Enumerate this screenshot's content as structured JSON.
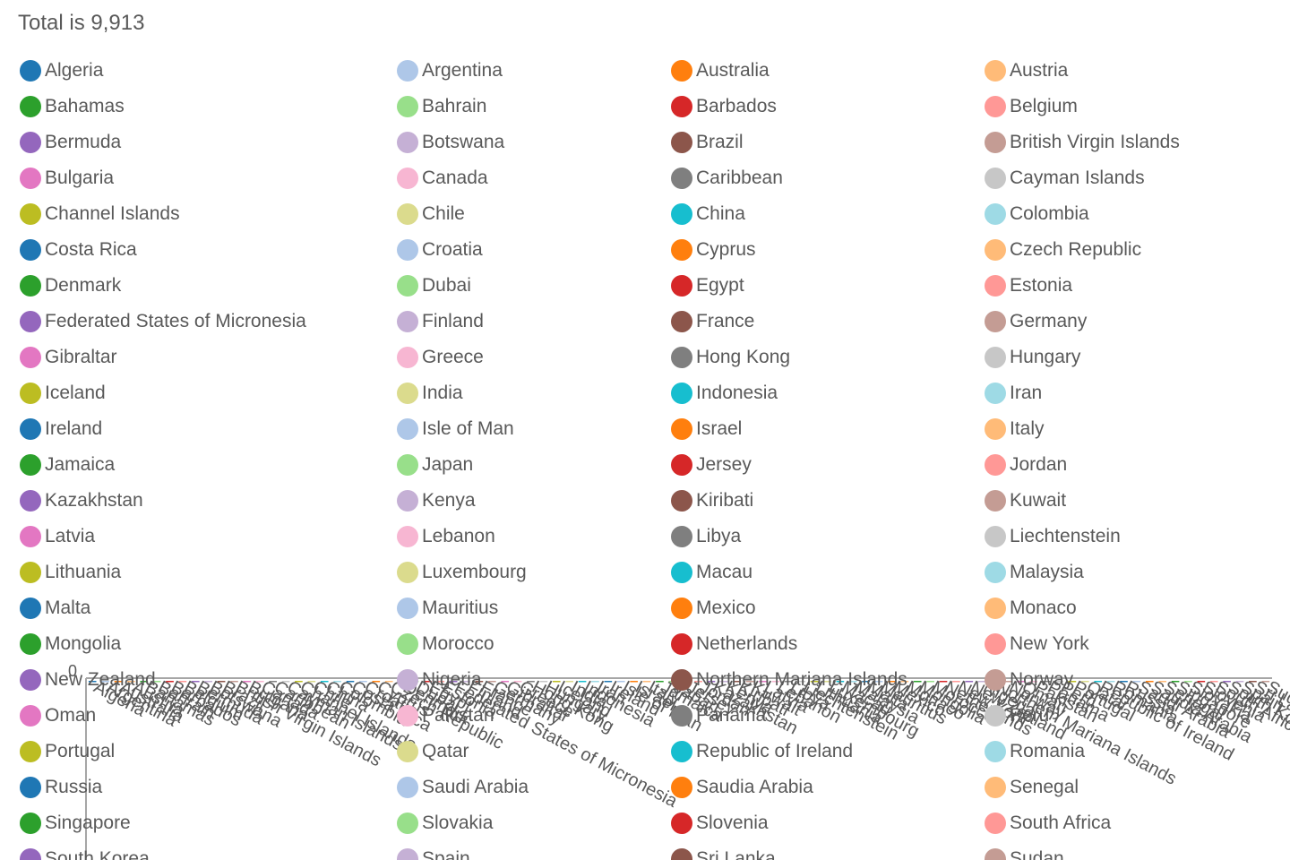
{
  "chart_data": {
    "type": "bar",
    "title": "Total is 9,913",
    "y_tick_labels": [
      "0"
    ],
    "legend": {
      "placement": "top",
      "columns": 4
    },
    "palette": [
      "#1f77b4",
      "#aec7e8",
      "#ff7f0e",
      "#ffbb78",
      "#2ca02c",
      "#98df8a",
      "#d62728",
      "#ff9896",
      "#9467bd",
      "#c5b0d5",
      "#8c564b",
      "#c49c94",
      "#e377c2",
      "#f7b6d2",
      "#7f7f7f",
      "#c7c7c7",
      "#bcbd22",
      "#dbdb8d",
      "#17becf",
      "#9edae5"
    ],
    "categories": [
      "Algeria",
      "Argentina",
      "Australia",
      "Austria",
      "Bahamas",
      "Bahrain",
      "Barbados",
      "Belgium",
      "Bermuda",
      "Botswana",
      "Brazil",
      "British Virgin Islands",
      "Bulgaria",
      "Canada",
      "Caribbean",
      "Cayman Islands",
      "Channel Islands",
      "Chile",
      "China",
      "Colombia",
      "Costa Rica",
      "Croatia",
      "Cyprus",
      "Czech Republic",
      "Denmark",
      "Dubai",
      "Egypt",
      "Estonia",
      "Federated States of Micronesia",
      "Finland",
      "France",
      "Germany",
      "Gibraltar",
      "Greece",
      "Hong Kong",
      "Hungary",
      "Iceland",
      "India",
      "Indonesia",
      "Iran",
      "Ireland",
      "Isle of Man",
      "Israel",
      "Italy",
      "Jamaica",
      "Japan",
      "Jersey",
      "Jordan",
      "Kazakhstan",
      "Kenya",
      "Kiribati",
      "Kuwait",
      "Latvia",
      "Lebanon",
      "Libya",
      "Liechtenstein",
      "Lithuania",
      "Luxembourg",
      "Macau",
      "Malaysia",
      "Malta",
      "Mauritius",
      "Mexico",
      "Monaco",
      "Mongolia",
      "Morocco",
      "Netherlands",
      "New York",
      "New Zealand",
      "Nigeria",
      "Northern Mariana Islands",
      "Norway",
      "Oman",
      "Pakistan",
      "Panama",
      "Peru",
      "Portugal",
      "Qatar",
      "Republic of Ireland",
      "Romania",
      "Russia",
      "Saudi Arabia",
      "Saudia Arabia",
      "Senegal",
      "Singapore",
      "Slovakia",
      "Slovenia",
      "South Africa",
      "South Korea",
      "Spain",
      "Sri Lanka",
      "Sudan"
    ]
  }
}
